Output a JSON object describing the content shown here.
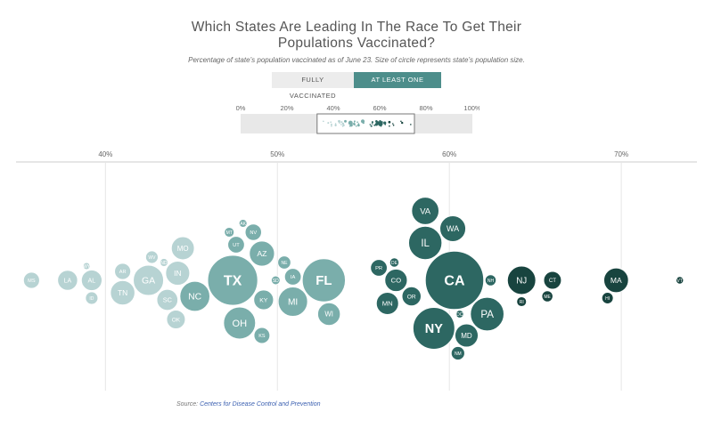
{
  "title_line1": "Which States Are Leading In The Race To Get Their",
  "title_line2": "Populations Vaccinated?",
  "subtitle": "Percentage of state’s population vaccinated as of June 23. Size of circle represents state’s population size.",
  "toggle": {
    "fully_label": "FULLY VACCINATED",
    "one_dose_label": "AT LEAST ONE DOSE"
  },
  "source_prefix": "Source: ",
  "source_link": "Centers for Disease Control and Prevention",
  "colors": {
    "light": "#b7d3d3",
    "mid": "#7aaeab",
    "dark": "#2d6762",
    "darkest": "#18443f",
    "axis": "#cccccc",
    "grid": "#e6e6e6",
    "brush_bg": "#e8e8e8"
  },
  "chart_data": [
    {
      "type": "bar",
      "title": "",
      "x_ticks": [
        "0%",
        "20%",
        "40%",
        "60%",
        "80%",
        "100%"
      ],
      "xlim": [
        0,
        100
      ],
      "selection": [
        33,
        75
      ],
      "values": []
    },
    {
      "type": "scatter",
      "title": "",
      "xlabel": "",
      "ylabel": "",
      "xlim": [
        34.8,
        74.4
      ],
      "x_ticks": [
        "40%",
        "50%",
        "60%",
        "70%"
      ],
      "x_tick_values": [
        40,
        50,
        60,
        70
      ],
      "grid": true,
      "size_encoding": "state population",
      "points": [
        {
          "state": "MS",
          "x": 35.7,
          "pop": 3.0
        },
        {
          "state": "LA",
          "x": 37.8,
          "pop": 4.6
        },
        {
          "state": "AL",
          "x": 39.2,
          "pop": 4.9
        },
        {
          "state": "ID",
          "x": 39.2,
          "pop": 1.8
        },
        {
          "state": "WY",
          "x": 38.9,
          "pop": 0.58
        },
        {
          "state": "AR",
          "x": 41.0,
          "pop": 3.0
        },
        {
          "state": "TN",
          "x": 41.0,
          "pop": 6.9
        },
        {
          "state": "GA",
          "x": 42.5,
          "pop": 10.6
        },
        {
          "state": "WV",
          "x": 42.7,
          "pop": 1.8
        },
        {
          "state": "ND",
          "x": 43.4,
          "pop": 0.76
        },
        {
          "state": "OK",
          "x": 44.1,
          "pop": 4.0
        },
        {
          "state": "SC",
          "x": 43.6,
          "pop": 5.1
        },
        {
          "state": "IN",
          "x": 44.2,
          "pop": 6.7
        },
        {
          "state": "MO",
          "x": 44.5,
          "pop": 6.1
        },
        {
          "state": "NC",
          "x": 45.2,
          "pop": 10.4
        },
        {
          "state": "TX",
          "x": 47.4,
          "pop": 29.0
        },
        {
          "state": "UT",
          "x": 47.6,
          "pop": 3.2
        },
        {
          "state": "MT",
          "x": 47.2,
          "pop": 1.1
        },
        {
          "state": "AK",
          "x": 48.0,
          "pop": 0.73
        },
        {
          "state": "NV",
          "x": 48.6,
          "pop": 3.1
        },
        {
          "state": "OH",
          "x": 47.8,
          "pop": 11.8
        },
        {
          "state": "KY",
          "x": 49.2,
          "pop": 4.5
        },
        {
          "state": "KS",
          "x": 49.1,
          "pop": 2.9
        },
        {
          "state": "AZ",
          "x": 49.1,
          "pop": 7.3
        },
        {
          "state": "SD",
          "x": 49.9,
          "pop": 0.89
        },
        {
          "state": "NE",
          "x": 50.4,
          "pop": 1.96
        },
        {
          "state": "IA",
          "x": 50.9,
          "pop": 3.2
        },
        {
          "state": "MI",
          "x": 50.9,
          "pop": 10.0
        },
        {
          "state": "FL",
          "x": 52.7,
          "pop": 21.5
        },
        {
          "state": "WI",
          "x": 53.0,
          "pop": 5.9
        },
        {
          "state": "PR",
          "x": 55.9,
          "pop": 3.2
        },
        {
          "state": "MN",
          "x": 56.4,
          "pop": 5.7
        },
        {
          "state": "CO",
          "x": 56.9,
          "pop": 5.8
        },
        {
          "state": "DE",
          "x": 56.8,
          "pop": 0.99
        },
        {
          "state": "OR",
          "x": 57.8,
          "pop": 4.2
        },
        {
          "state": "VA",
          "x": 58.6,
          "pop": 8.6
        },
        {
          "state": "NY",
          "x": 59.1,
          "pop": 20.2
        },
        {
          "state": "IL",
          "x": 58.6,
          "pop": 12.8
        },
        {
          "state": "DC",
          "x": 60.6,
          "pop": 0.69
        },
        {
          "state": "MD",
          "x": 61.0,
          "pop": 6.2
        },
        {
          "state": "CA",
          "x": 60.3,
          "pop": 39.5
        },
        {
          "state": "NM",
          "x": 60.5,
          "pop": 2.1
        },
        {
          "state": "WA",
          "x": 60.2,
          "pop": 7.7
        },
        {
          "state": "PA",
          "x": 62.2,
          "pop": 13.0
        },
        {
          "state": "NH",
          "x": 62.4,
          "pop": 1.4
        },
        {
          "state": "RI",
          "x": 64.2,
          "pop": 1.1
        },
        {
          "state": "NJ",
          "x": 64.2,
          "pop": 9.3
        },
        {
          "state": "ME",
          "x": 65.7,
          "pop": 1.4
        },
        {
          "state": "CT",
          "x": 66.0,
          "pop": 3.6
        },
        {
          "state": "HI",
          "x": 69.2,
          "pop": 1.5
        },
        {
          "state": "MA",
          "x": 69.7,
          "pop": 7.0
        },
        {
          "state": "VT",
          "x": 73.4,
          "pop": 0.64
        }
      ]
    }
  ]
}
